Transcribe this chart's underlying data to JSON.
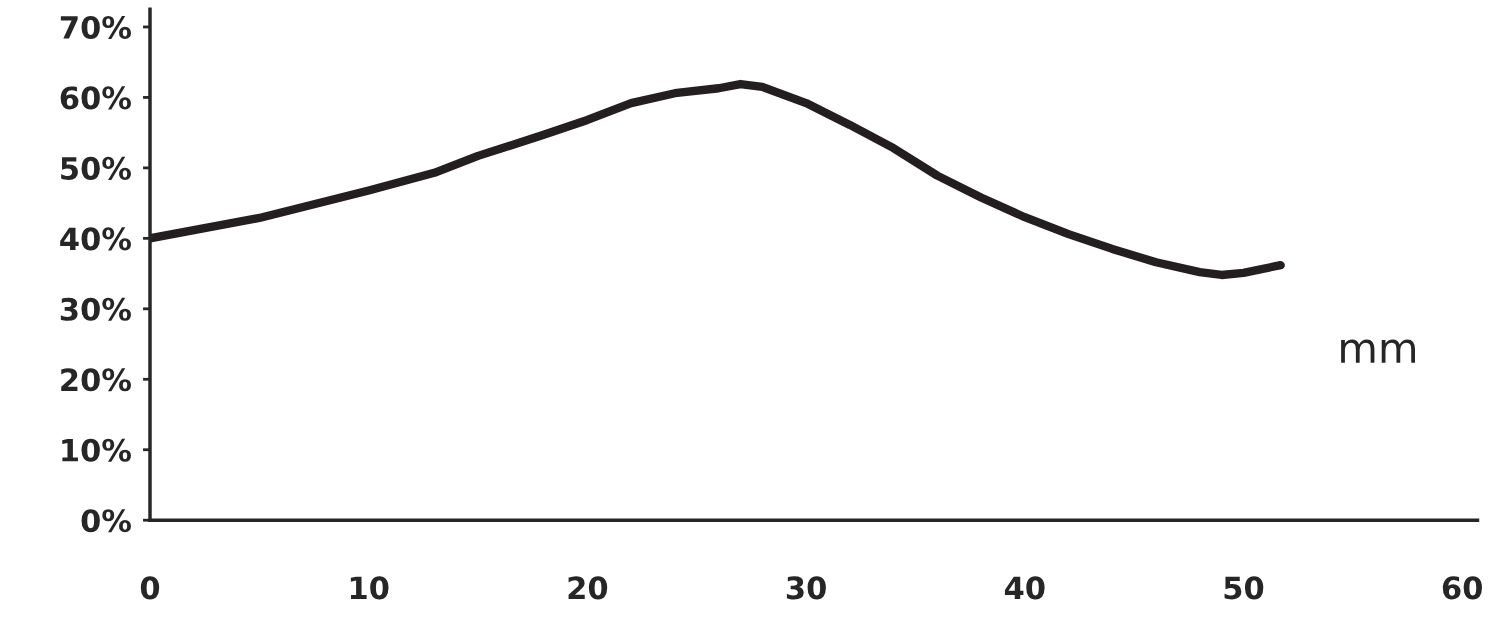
{
  "chart_data": {
    "type": "line",
    "xlabel": "mm",
    "x": [
      0,
      5,
      10,
      13,
      15,
      18,
      20,
      22,
      24,
      26,
      27,
      28,
      30,
      32,
      34,
      36,
      38,
      40,
      42,
      44,
      46,
      48,
      49,
      50,
      51.7
    ],
    "series": [
      {
        "color": "#231f20",
        "values": [
          40,
          42.9,
          46.8,
          49.3,
          51.7,
          54.7,
          56.8,
          59.2,
          60.6,
          61.3,
          61.9,
          61.5,
          59.2,
          56.1,
          52.8,
          48.9,
          45.8,
          43.0,
          40.6,
          38.5,
          36.6,
          35.2,
          34.8,
          35.1,
          36.2
        ]
      }
    ],
    "xlim": [
      0,
      60.7
    ],
    "xticks": [
      0,
      10,
      20,
      30,
      40,
      50,
      60
    ],
    "ylim": [
      0,
      72.5
    ],
    "yticks": [
      {
        "value": 0,
        "label": "0%"
      },
      {
        "value": 10,
        "label": "10%"
      },
      {
        "value": 20,
        "label": "20%"
      },
      {
        "value": 30,
        "label": "30%"
      },
      {
        "value": 40,
        "label": "40%"
      },
      {
        "value": 50,
        "label": "50%"
      },
      {
        "value": 60,
        "label": "60%"
      },
      {
        "value": 70,
        "label": "70%"
      }
    ],
    "grid": false,
    "legend": false,
    "marker": "none",
    "line_style": "solid"
  }
}
